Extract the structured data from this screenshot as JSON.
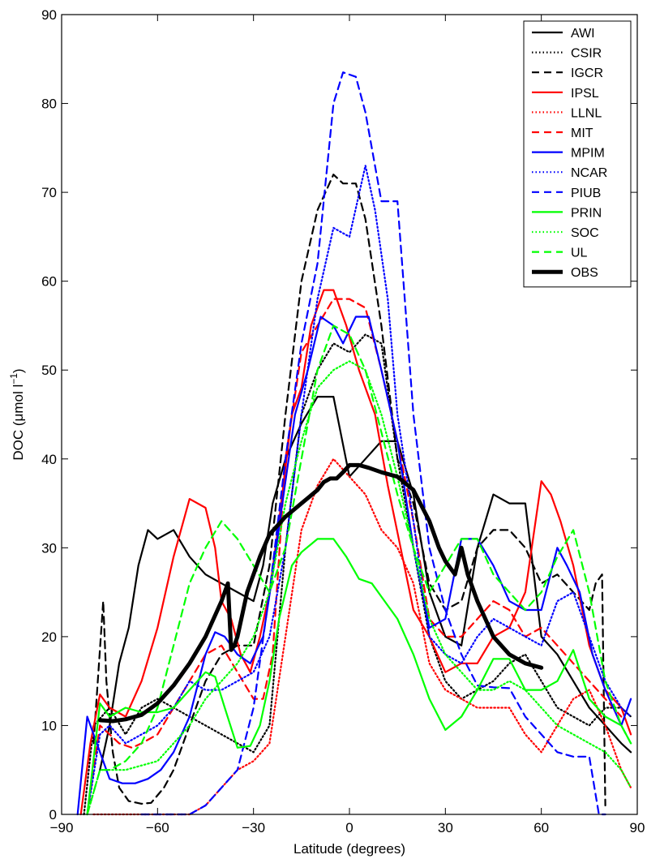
{
  "chart_data": {
    "type": "line",
    "xlabel": "Latitude (degrees)",
    "ylabel": "DOC (μmol l",
    "ylabel_superscript": "−1",
    "ylabel_suffix": ")",
    "xlim": [
      -90,
      90
    ],
    "ylim": [
      0,
      90
    ],
    "xticks": [
      -90,
      -60,
      -30,
      0,
      30,
      60,
      90
    ],
    "xtick_labels": [
      "−90",
      "−60",
      "−30",
      "0",
      "30",
      "60",
      "90"
    ],
    "yticks": [
      0,
      10,
      20,
      30,
      40,
      50,
      60,
      70,
      80,
      90
    ],
    "ytick_labels": [
      "0",
      "10",
      "20",
      "30",
      "40",
      "50",
      "60",
      "70",
      "80",
      "90"
    ],
    "grid": false,
    "legend_position": "top-right",
    "series": [
      {
        "name": "AWI",
        "color": "#000000",
        "dash": "solid",
        "x": [
          -78,
          -75,
          -72,
          -69,
          -66,
          -63,
          -60,
          -55,
          -50,
          -45,
          -40,
          -35,
          -30,
          -27,
          -24,
          -20,
          -15,
          -10,
          -5,
          0,
          5,
          10,
          15,
          20,
          25,
          30,
          35,
          40,
          45,
          50,
          55,
          60,
          65,
          70,
          75,
          80,
          85,
          88
        ],
        "y": [
          5,
          10,
          17,
          21,
          28,
          32,
          31,
          32,
          29,
          27,
          26,
          25,
          24,
          28,
          35,
          40,
          44,
          47,
          47,
          38,
          40,
          42,
          42,
          36,
          25,
          20,
          19,
          30,
          36,
          35,
          35,
          20,
          18,
          15,
          12,
          10,
          8,
          7
        ]
      },
      {
        "name": "CSIR",
        "color": "#000000",
        "dash": "dotted",
        "x": [
          -83,
          -80,
          -75,
          -70,
          -65,
          -60,
          -55,
          -50,
          -45,
          -40,
          -35,
          -30,
          -25,
          -20,
          -15,
          -10,
          -5,
          0,
          5,
          10,
          15,
          20,
          25,
          30,
          35,
          40,
          45,
          50,
          55,
          60,
          65,
          70,
          75,
          80,
          85,
          88
        ],
        "y": [
          0,
          10,
          12,
          9,
          12,
          13,
          12,
          11,
          10,
          9,
          8,
          7,
          10,
          30,
          45,
          50,
          53,
          52,
          54,
          53,
          40,
          30,
          20,
          15,
          13,
          14,
          15,
          17,
          18,
          15,
          12,
          11,
          10,
          12,
          12,
          11
        ]
      },
      {
        "name": "IGCR",
        "color": "#000000",
        "dash": "dashed",
        "x": [
          -80,
          -77,
          -76,
          -74,
          -72,
          -69,
          -65,
          -62,
          -58,
          -55,
          -50,
          -45,
          -40,
          -35,
          -30,
          -25,
          -20,
          -15,
          -10,
          -5,
          -2,
          2,
          5,
          10,
          15,
          20,
          25,
          30,
          35,
          40,
          45,
          50,
          55,
          60,
          65,
          70,
          75,
          77,
          79,
          80
        ],
        "y": [
          8,
          24,
          15,
          7,
          3,
          1.5,
          1.2,
          1.3,
          3,
          5,
          10,
          15,
          18,
          19,
          19,
          28,
          45,
          60,
          68,
          72,
          71,
          71,
          67,
          55,
          40,
          35,
          26,
          23,
          24,
          30,
          32,
          32,
          30,
          26,
          27,
          25,
          23,
          26,
          27,
          1
        ]
      },
      {
        "name": "IPSL",
        "color": "#ff0000",
        "dash": "solid",
        "x": [
          -84,
          -81,
          -78,
          -75,
          -70,
          -65,
          -60,
          -55,
          -50,
          -45,
          -42,
          -40,
          -37,
          -34,
          -31,
          -28,
          -25,
          -22,
          -18,
          -15,
          -12,
          -8,
          -5,
          -1,
          3,
          8,
          12,
          16,
          20,
          25,
          30,
          35,
          40,
          45,
          50,
          55,
          60,
          63,
          66,
          70,
          75,
          80,
          85,
          88
        ],
        "y": [
          0,
          8,
          13.5,
          12,
          11,
          15,
          21,
          29,
          35.5,
          34.5,
          30,
          24,
          22,
          18,
          16,
          20,
          25,
          33,
          45,
          48,
          55,
          59,
          59,
          55,
          50,
          45,
          37,
          30,
          23,
          20,
          16,
          17,
          17,
          20,
          21,
          25,
          37.5,
          36,
          33,
          28,
          19,
          14,
          12,
          9
        ]
      },
      {
        "name": "LLNL",
        "color": "#ff0000",
        "dash": "dotted",
        "x": [
          -80,
          -75,
          -70,
          -65,
          -60,
          -55,
          -50,
          -45,
          -40,
          -35,
          -30,
          -25,
          -20,
          -15,
          -10,
          -5,
          0,
          5,
          10,
          15,
          20,
          25,
          30,
          35,
          40,
          45,
          50,
          55,
          60,
          65,
          70,
          75,
          80,
          85,
          88
        ],
        "y": [
          0,
          0,
          0,
          0,
          0,
          0,
          0,
          1,
          3,
          5,
          6,
          8,
          20,
          32,
          37,
          40,
          38,
          36,
          32,
          30,
          26,
          17,
          14,
          13,
          12,
          12,
          12,
          9,
          7,
          10,
          13,
          14,
          10,
          5,
          3
        ]
      },
      {
        "name": "MIT",
        "color": "#ff0000",
        "dash": "dashed",
        "x": [
          -82,
          -78,
          -75,
          -72,
          -68,
          -65,
          -60,
          -55,
          -50,
          -45,
          -40,
          -35,
          -30,
          -27,
          -24,
          -20,
          -15,
          -10,
          -5,
          0,
          5,
          10,
          15,
          20,
          25,
          30,
          35,
          40,
          45,
          50,
          55,
          60,
          65,
          70,
          75,
          80,
          85
        ],
        "y": [
          0,
          10,
          9,
          8,
          7.5,
          8,
          9,
          12,
          15,
          18,
          19,
          16,
          13,
          13,
          18,
          40,
          52,
          55,
          58,
          58,
          57,
          50,
          42,
          33,
          22,
          20,
          20,
          22,
          24,
          23,
          20,
          21,
          19,
          17,
          15,
          13,
          11
        ]
      },
      {
        "name": "MPIM",
        "color": "#0000ff",
        "dash": "solid",
        "x": [
          -85,
          -82,
          -79,
          -75,
          -71,
          -67,
          -63,
          -59,
          -55,
          -50,
          -45,
          -42,
          -39,
          -35,
          -31,
          -27,
          -24,
          -21,
          -17,
          -13,
          -9,
          -5,
          -2,
          2,
          6,
          10,
          15,
          20,
          25,
          30,
          35,
          40,
          45,
          50,
          55,
          60,
          65,
          68,
          72,
          76,
          80,
          85,
          88
        ],
        "y": [
          0,
          11,
          8,
          4,
          3.5,
          3.5,
          4,
          5,
          7,
          11,
          18,
          20.5,
          20,
          18,
          17,
          20,
          27,
          35,
          45,
          50,
          56,
          55,
          53,
          56,
          56,
          50,
          42,
          30,
          21,
          22,
          31,
          31,
          28,
          24,
          23,
          23,
          30,
          28,
          25,
          18,
          14,
          10,
          13
        ]
      },
      {
        "name": "NCAR",
        "color": "#0000ff",
        "dash": "dotted",
        "x": [
          -82,
          -78,
          -75,
          -70,
          -65,
          -60,
          -55,
          -50,
          -45,
          -40,
          -35,
          -30,
          -25,
          -20,
          -15,
          -10,
          -5,
          0,
          5,
          8,
          12,
          15,
          20,
          25,
          30,
          35,
          40,
          45,
          50,
          55,
          60,
          65,
          70,
          75,
          80,
          85,
          88
        ],
        "y": [
          0,
          9,
          10,
          8,
          9,
          10,
          12,
          15,
          14,
          14,
          15,
          16,
          20,
          30,
          45,
          58,
          66,
          65,
          73,
          68,
          58,
          45,
          33,
          20,
          18,
          17,
          20,
          22,
          21,
          20,
          19,
          24,
          25,
          20,
          15,
          12,
          11
        ]
      },
      {
        "name": "PIUB",
        "color": "#0000ff",
        "dash": "dashed",
        "x": [
          -65,
          -55,
          -50,
          -45,
          -40,
          -35,
          -30,
          -25,
          -20,
          -15,
          -10,
          -5,
          -2,
          2,
          5,
          10,
          15,
          20,
          25,
          30,
          35,
          40,
          45,
          50,
          55,
          60,
          65,
          70,
          75,
          78,
          80
        ],
        "y": [
          0,
          0,
          0,
          1,
          3,
          5,
          12,
          25,
          40,
          53,
          62,
          80,
          83.5,
          83,
          79,
          69,
          69,
          45,
          30,
          23,
          18,
          14.5,
          14.3,
          14.2,
          11,
          9,
          7,
          6.5,
          6.5,
          0,
          0
        ]
      },
      {
        "name": "PRIN",
        "color": "#00ff00",
        "dash": "solid",
        "x": [
          -82,
          -78,
          -75,
          -70,
          -65,
          -60,
          -55,
          -50,
          -45,
          -42,
          -39,
          -35,
          -31,
          -28,
          -25,
          -22,
          -18,
          -15,
          -10,
          -5,
          -1,
          3,
          7,
          11,
          15,
          20,
          25,
          30,
          35,
          40,
          45,
          50,
          55,
          60,
          65,
          70,
          75,
          80,
          85,
          88
        ],
        "y": [
          0,
          12.5,
          11,
          12,
          11.5,
          11.5,
          12,
          14,
          16,
          15.5,
          12,
          7.5,
          7.7,
          10,
          15,
          22,
          28,
          29.5,
          31,
          31,
          29,
          26.5,
          26,
          24,
          22,
          18,
          13,
          9.5,
          11,
          14,
          17.5,
          17.5,
          14,
          14,
          15,
          18.5,
          13,
          11,
          10,
          8
        ]
      },
      {
        "name": "SOC",
        "color": "#00ff00",
        "dash": "dotted",
        "x": [
          -82,
          -78,
          -75,
          -70,
          -65,
          -60,
          -55,
          -50,
          -45,
          -40,
          -35,
          -30,
          -25,
          -20,
          -15,
          -10,
          -5,
          0,
          5,
          10,
          15,
          20,
          25,
          30,
          35,
          40,
          45,
          50,
          55,
          60,
          65,
          70,
          75,
          80,
          85,
          88
        ],
        "y": [
          0,
          5,
          5,
          5,
          5.5,
          6,
          8,
          10,
          13,
          15,
          17,
          20,
          25,
          35,
          42,
          48,
          50,
          51,
          50,
          45,
          38,
          30,
          22,
          18,
          16,
          14,
          14,
          15,
          14,
          12,
          10,
          9,
          8,
          7,
          5,
          3
        ]
      },
      {
        "name": "UL",
        "color": "#00ff00",
        "dash": "dashed",
        "x": [
          -82,
          -78,
          -75,
          -70,
          -65,
          -60,
          -55,
          -50,
          -45,
          -40,
          -35,
          -30,
          -25,
          -20,
          -15,
          -10,
          -5,
          0,
          5,
          10,
          15,
          20,
          25,
          30,
          35,
          40,
          45,
          50,
          55,
          60,
          65,
          70,
          75,
          80,
          85,
          88
        ],
        "y": [
          0,
          5,
          5,
          6,
          8,
          12,
          19,
          26,
          30,
          33,
          31,
          28,
          25,
          30,
          40,
          50,
          55,
          54,
          50,
          43,
          36,
          30,
          25,
          28,
          31,
          31,
          27,
          25,
          23,
          25,
          29,
          32,
          25,
          15,
          10,
          8
        ]
      },
      {
        "name": "OBS",
        "color": "#000000",
        "dash": "solid",
        "width": "thick",
        "x": [
          -78,
          -74,
          -70,
          -65,
          -60,
          -55,
          -50,
          -45,
          -40,
          -38,
          -37,
          -36,
          -35,
          -32,
          -28,
          -25,
          -20,
          -15,
          -10,
          -8,
          -6,
          -4,
          -2,
          0,
          3,
          6,
          10,
          15,
          20,
          25,
          28,
          30,
          33,
          34,
          35,
          37,
          40,
          45,
          50,
          55,
          60
        ],
        "y": [
          10.6,
          10.5,
          10.7,
          11.2,
          12.5,
          14.5,
          17,
          20,
          24,
          26,
          18.5,
          19,
          20,
          25,
          29,
          31.5,
          33.5,
          35,
          36.5,
          37.4,
          37.8,
          37.8,
          38.5,
          39.3,
          39.3,
          39,
          38.5,
          38,
          36.5,
          33,
          30,
          28.5,
          27,
          28.5,
          30,
          27,
          24,
          20,
          18,
          17,
          16.5
        ]
      }
    ]
  }
}
